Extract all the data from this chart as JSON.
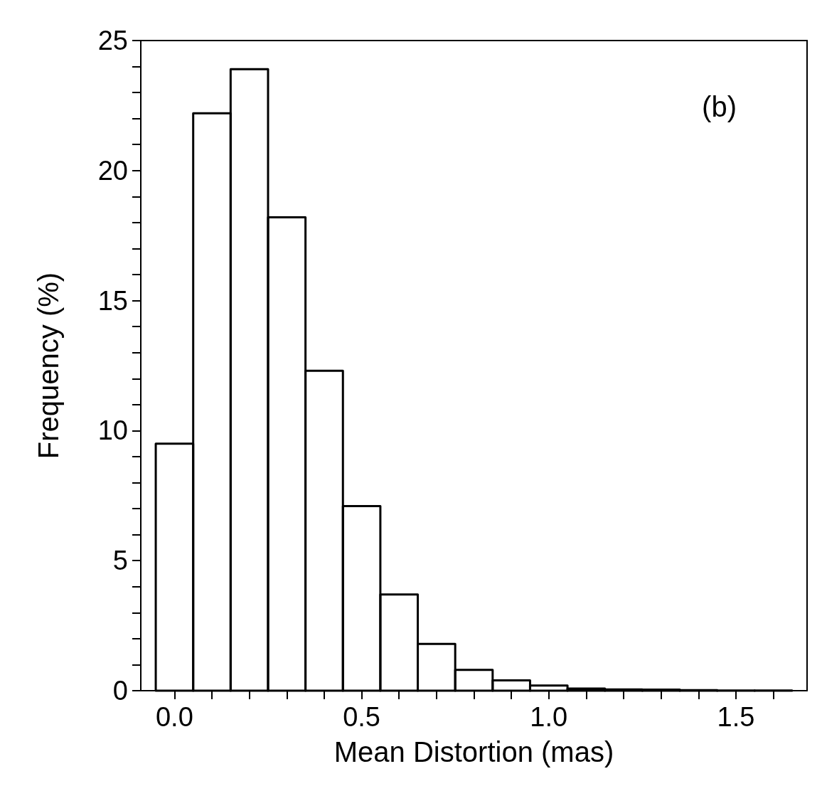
{
  "chart_data": {
    "type": "histogram",
    "xlabel": "Mean Distortion (mas)",
    "ylabel": "Frequency (%)",
    "annotations": [
      "(b)"
    ],
    "bins": [
      -0.05,
      0.05,
      0.15,
      0.25,
      0.35,
      0.45,
      0.55,
      0.65,
      0.75,
      0.85,
      0.95,
      1.05,
      1.15,
      1.25,
      1.35,
      1.45,
      1.55,
      1.65
    ],
    "values": [
      9.5,
      22.2,
      23.9,
      18.2,
      12.3,
      7.1,
      3.7,
      1.8,
      0.8,
      0.4,
      0.2,
      0.08,
      0.05,
      0.04,
      0.02,
      0.01,
      0.01
    ],
    "color": "#000000",
    "xlim": [
      -0.09,
      1.69
    ],
    "xticks": [
      {
        "value": 0,
        "label": "0.0"
      },
      {
        "value": 0.1,
        "label": null
      },
      {
        "value": 0.2,
        "label": null
      },
      {
        "value": 0.3,
        "label": null
      },
      {
        "value": 0.4,
        "label": null
      },
      {
        "value": 0.5,
        "label": "0.5"
      },
      {
        "value": 0.6,
        "label": null
      },
      {
        "value": 0.7,
        "label": null
      },
      {
        "value": 0.8,
        "label": null
      },
      {
        "value": 0.9,
        "label": null
      },
      {
        "value": 1,
        "label": "1.0"
      },
      {
        "value": 1.1,
        "label": null
      },
      {
        "value": 1.2,
        "label": null
      },
      {
        "value": 1.3,
        "label": null
      },
      {
        "value": 1.4,
        "label": null
      },
      {
        "value": 1.5,
        "label": "1.5"
      },
      {
        "value": 1.6,
        "label": null
      }
    ],
    "ylim": [
      0,
      25
    ],
    "yticks": [
      0,
      {
        "value": 1,
        "label": null
      },
      {
        "value": 2,
        "label": null
      },
      {
        "value": 3,
        "label": null
      },
      {
        "value": 4,
        "label": null
      },
      5,
      {
        "value": 6,
        "label": null
      },
      {
        "value": 7,
        "label": null
      },
      {
        "value": 8,
        "label": null
      },
      {
        "value": 9,
        "label": null
      },
      10,
      {
        "value": 11,
        "label": null
      },
      {
        "value": 12,
        "label": null
      },
      {
        "value": 13,
        "label": null
      },
      {
        "value": 14,
        "label": null
      },
      15,
      {
        "value": 16,
        "label": null
      },
      {
        "value": 17,
        "label": null
      },
      {
        "value": 18,
        "label": null
      },
      {
        "value": 19,
        "label": null
      },
      20,
      {
        "value": 21,
        "label": null
      },
      {
        "value": 22,
        "label": null
      },
      {
        "value": 23,
        "label": null
      },
      {
        "value": 24,
        "label": null
      },
      25
    ]
  }
}
